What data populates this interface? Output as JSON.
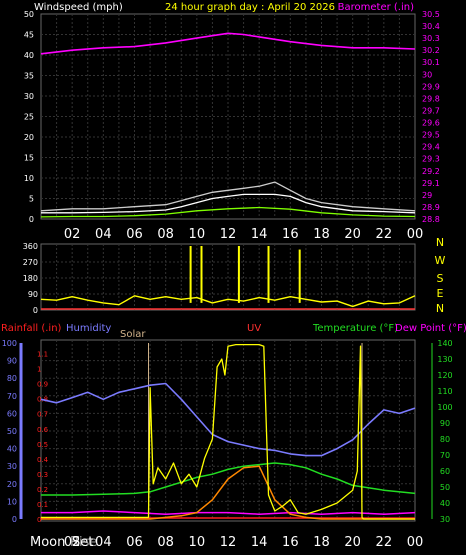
{
  "chart_data": [
    {
      "type": "line",
      "title": "24 hour graph day : April 20 2026",
      "left_label": "Windspeed (mph)",
      "right_label": "Barometer (.in)",
      "x_ticks": [
        "02",
        "04",
        "06",
        "08",
        "10",
        "12",
        "14",
        "16",
        "18",
        "20",
        "22",
        "00"
      ],
      "ylim_left": [
        0,
        50
      ],
      "left_ticks": [
        "0",
        "5",
        "10",
        "15",
        "20",
        "25",
        "30",
        "35",
        "40",
        "45",
        "50"
      ],
      "ylim_right": [
        28.8,
        30.5
      ],
      "right_ticks": [
        "28.8",
        "28.9",
        "29",
        "29.1",
        "29.2",
        "29.3",
        "29.4",
        "29.5",
        "29.6",
        "29.7",
        "29.8",
        "29.9",
        "30",
        "30.1",
        "30.2",
        "30.3",
        "30.4",
        "30.5"
      ],
      "grid": true,
      "colors": {
        "barometer": "#ff00ff",
        "wind": "#ffffff",
        "gust": "#cccccc",
        "avg_wind": "#7fff00",
        "title": "#ffff00",
        "left_axis": "#ffffff",
        "right_axis": "#ff00ff"
      },
      "series": [
        {
          "name": "Barometer",
          "x": [
            0,
            2,
            4,
            6,
            8,
            10,
            11,
            12,
            13,
            14,
            16,
            18,
            20,
            22,
            24
          ],
          "values": [
            30.17,
            30.2,
            30.22,
            30.23,
            30.26,
            30.3,
            30.32,
            30.34,
            30.33,
            30.31,
            30.27,
            30.24,
            30.22,
            30.22,
            30.21
          ]
        },
        {
          "name": "Windspeed",
          "x": [
            0,
            2,
            4,
            6,
            8,
            9,
            10,
            11,
            12,
            13,
            14,
            15,
            16,
            17,
            18,
            20,
            22,
            24
          ],
          "values": [
            1.5,
            1.5,
            1.6,
            1.8,
            2.2,
            3,
            4,
            5,
            5.5,
            6,
            6,
            6,
            5.5,
            4,
            3,
            2,
            1.8,
            1.5
          ]
        },
        {
          "name": "Gust",
          "x": [
            0,
            2,
            4,
            6,
            8,
            9,
            10,
            11,
            12,
            13,
            14,
            15,
            16,
            17,
            18,
            20,
            22,
            24
          ],
          "values": [
            2,
            2.5,
            2.5,
            3,
            3.5,
            4.5,
            5.5,
            6.5,
            7,
            7.5,
            8,
            9,
            7,
            5,
            4,
            3,
            2.5,
            2
          ]
        },
        {
          "name": "Avg Wind",
          "x": [
            0,
            2,
            4,
            6,
            8,
            10,
            12,
            14,
            16,
            18,
            20,
            22,
            24
          ],
          "values": [
            0.5,
            0.6,
            0.6,
            0.8,
            1.2,
            2,
            2.5,
            2.8,
            2.4,
            1.5,
            1,
            0.7,
            0.6
          ]
        }
      ]
    },
    {
      "type": "line",
      "title": "",
      "right_labels": [
        "N",
        "W",
        "S",
        "E",
        "N"
      ],
      "ylim": [
        0,
        360
      ],
      "ticks": [
        "0",
        "90",
        "180",
        "270",
        "360"
      ],
      "grid": true,
      "colors": {
        "direction": "#ffff00",
        "baseline": "#ff3333",
        "compass": "#ffff00"
      },
      "series": [
        {
          "name": "Wind Direction",
          "x": [
            0,
            1,
            2,
            3,
            4,
            5,
            6,
            7,
            8,
            9,
            10,
            11,
            12,
            13,
            14,
            15,
            16,
            17,
            18,
            19,
            20,
            21,
            22,
            23,
            24
          ],
          "values": [
            60,
            55,
            75,
            55,
            40,
            30,
            80,
            60,
            75,
            60,
            70,
            40,
            60,
            50,
            70,
            55,
            75,
            60,
            45,
            50,
            20,
            50,
            35,
            40,
            80
          ]
        },
        {
          "name": "Direction spikes",
          "x": [
            9.6,
            10.3,
            12.7,
            14.6,
            16.6
          ],
          "values": [
            360,
            360,
            360,
            360,
            340
          ]
        }
      ]
    },
    {
      "type": "line",
      "title": "",
      "legend": [
        "Rainfall (.in)",
        "Humidity",
        "Solar",
        "UV",
        "Temperature (°F)",
        "Dew Point (°F)"
      ],
      "ylim_left": [
        0,
        100
      ],
      "left_ticks": [
        "0",
        "10",
        "20",
        "30",
        "40",
        "50",
        "60",
        "70",
        "80",
        "90",
        "100"
      ],
      "rain_ticks": [
        "0",
        "0.1",
        "0.2",
        "0.3",
        "0.4",
        "0.5",
        "0.6",
        "0.7",
        "0.8",
        "0.9",
        "1",
        "1.1"
      ],
      "ylim_right": [
        30,
        140
      ],
      "right_ticks": [
        "30",
        "40",
        "50",
        "60",
        "70",
        "80",
        "90",
        "100",
        "110",
        "120",
        "130",
        "140"
      ],
      "x_ticks": [
        "02",
        "04",
        "06",
        "08",
        "10",
        "12",
        "14",
        "16",
        "18",
        "20",
        "22",
        "00"
      ],
      "moon_labels": [
        "Moon",
        "Rise",
        "Set"
      ],
      "grid": true,
      "colors": {
        "rain": "#ff2020",
        "humidity": "#7b7bff",
        "solar": "#d2b48c",
        "uv": "#ff3030",
        "temperature": "#22dd22",
        "dewpoint": "#ff00ff",
        "solar_line": "#ffff00",
        "uv_line": "#ff8800"
      },
      "series": [
        {
          "name": "Humidity",
          "x": [
            0,
            1,
            2,
            3,
            4,
            5,
            6,
            7,
            8,
            9,
            10,
            11,
            12,
            13,
            14,
            15,
            16,
            17,
            18,
            19,
            20,
            21,
            22,
            23,
            24
          ],
          "values": [
            68,
            66,
            69,
            72,
            68,
            72,
            74,
            76,
            77,
            68,
            58,
            48,
            44,
            42,
            40,
            39,
            37,
            36,
            36,
            40,
            45,
            54,
            62,
            60,
            63
          ]
        },
        {
          "name": "Temperature",
          "x": [
            0,
            2,
            4,
            6,
            7,
            8,
            9,
            10,
            11,
            12,
            13,
            14,
            15,
            16,
            17,
            18,
            19,
            20,
            22,
            24
          ],
          "values": [
            45,
            45,
            45.5,
            46,
            47,
            50,
            53,
            56,
            58,
            61,
            63,
            64,
            65,
            64,
            62,
            58,
            55,
            51,
            48,
            46
          ]
        },
        {
          "name": "Dew Point",
          "x": [
            0,
            2,
            4,
            6,
            8,
            10,
            12,
            14,
            16,
            18,
            20,
            22,
            24
          ],
          "values": [
            34,
            34,
            35,
            34,
            33,
            34,
            34,
            33,
            34,
            33,
            34,
            33,
            34
          ]
        },
        {
          "name": "Solar",
          "x": [
            0,
            6.9,
            7,
            7.2,
            7.5,
            8,
            8.5,
            9,
            9.5,
            10,
            10.5,
            11,
            11.3,
            11.6,
            11.8,
            12,
            12.5,
            13,
            13.5,
            14,
            14.3,
            14.6,
            14.8,
            15,
            15.5,
            16,
            16.5,
            17,
            18,
            19,
            20,
            20.3,
            20.5,
            20.6,
            20.7,
            24
          ],
          "values": [
            31,
            31,
            112,
            52,
            62,
            55,
            65,
            52,
            58,
            50,
            68,
            80,
            125,
            130,
            120,
            138,
            139,
            139,
            139,
            139,
            138,
            45,
            40,
            35,
            38,
            42,
            34,
            33,
            36,
            40,
            48,
            60,
            138,
            31,
            30,
            30
          ]
        },
        {
          "name": "UV",
          "x": [
            0,
            7,
            8,
            9,
            10,
            11,
            12,
            13,
            14,
            15,
            16,
            17,
            18,
            24
          ],
          "values": [
            30,
            30,
            31,
            32,
            34,
            42,
            55,
            62,
            63,
            42,
            33,
            31,
            30,
            30
          ]
        }
      ]
    }
  ]
}
